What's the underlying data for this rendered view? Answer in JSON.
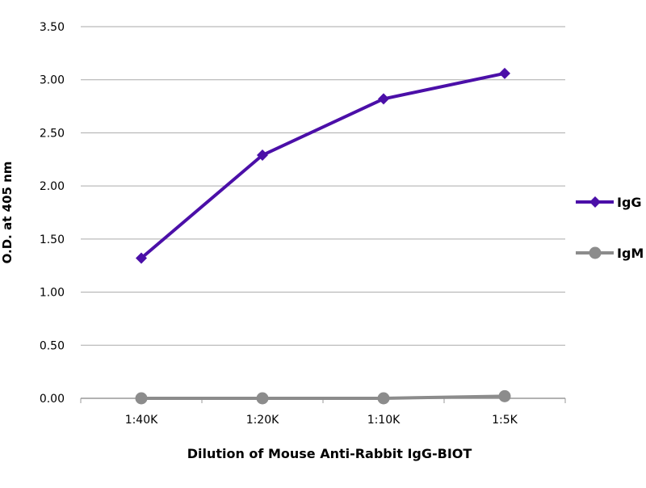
{
  "chart_data": {
    "type": "line",
    "title": "",
    "xlabel": "Dilution of Mouse Anti-Rabbit IgG-BIOT",
    "ylabel": "O.D. at 405 nm",
    "categories": [
      "1:40K",
      "1:20K",
      "1:10K",
      "1:5K"
    ],
    "ylim": [
      0,
      3.5
    ],
    "yticks": [
      "0.00",
      "0.50",
      "1.00",
      "1.50",
      "2.00",
      "2.50",
      "3.00",
      "3.50"
    ],
    "grid": true,
    "legend_position": "right",
    "series": [
      {
        "name": "IgG",
        "values": [
          1.32,
          2.29,
          2.82,
          3.06
        ],
        "color": "#4b0fa8",
        "marker": "diamond"
      },
      {
        "name": "IgM",
        "values": [
          0.0,
          0.0,
          0.0,
          0.02
        ],
        "color": "#8c8c8c",
        "marker": "circle"
      }
    ]
  }
}
